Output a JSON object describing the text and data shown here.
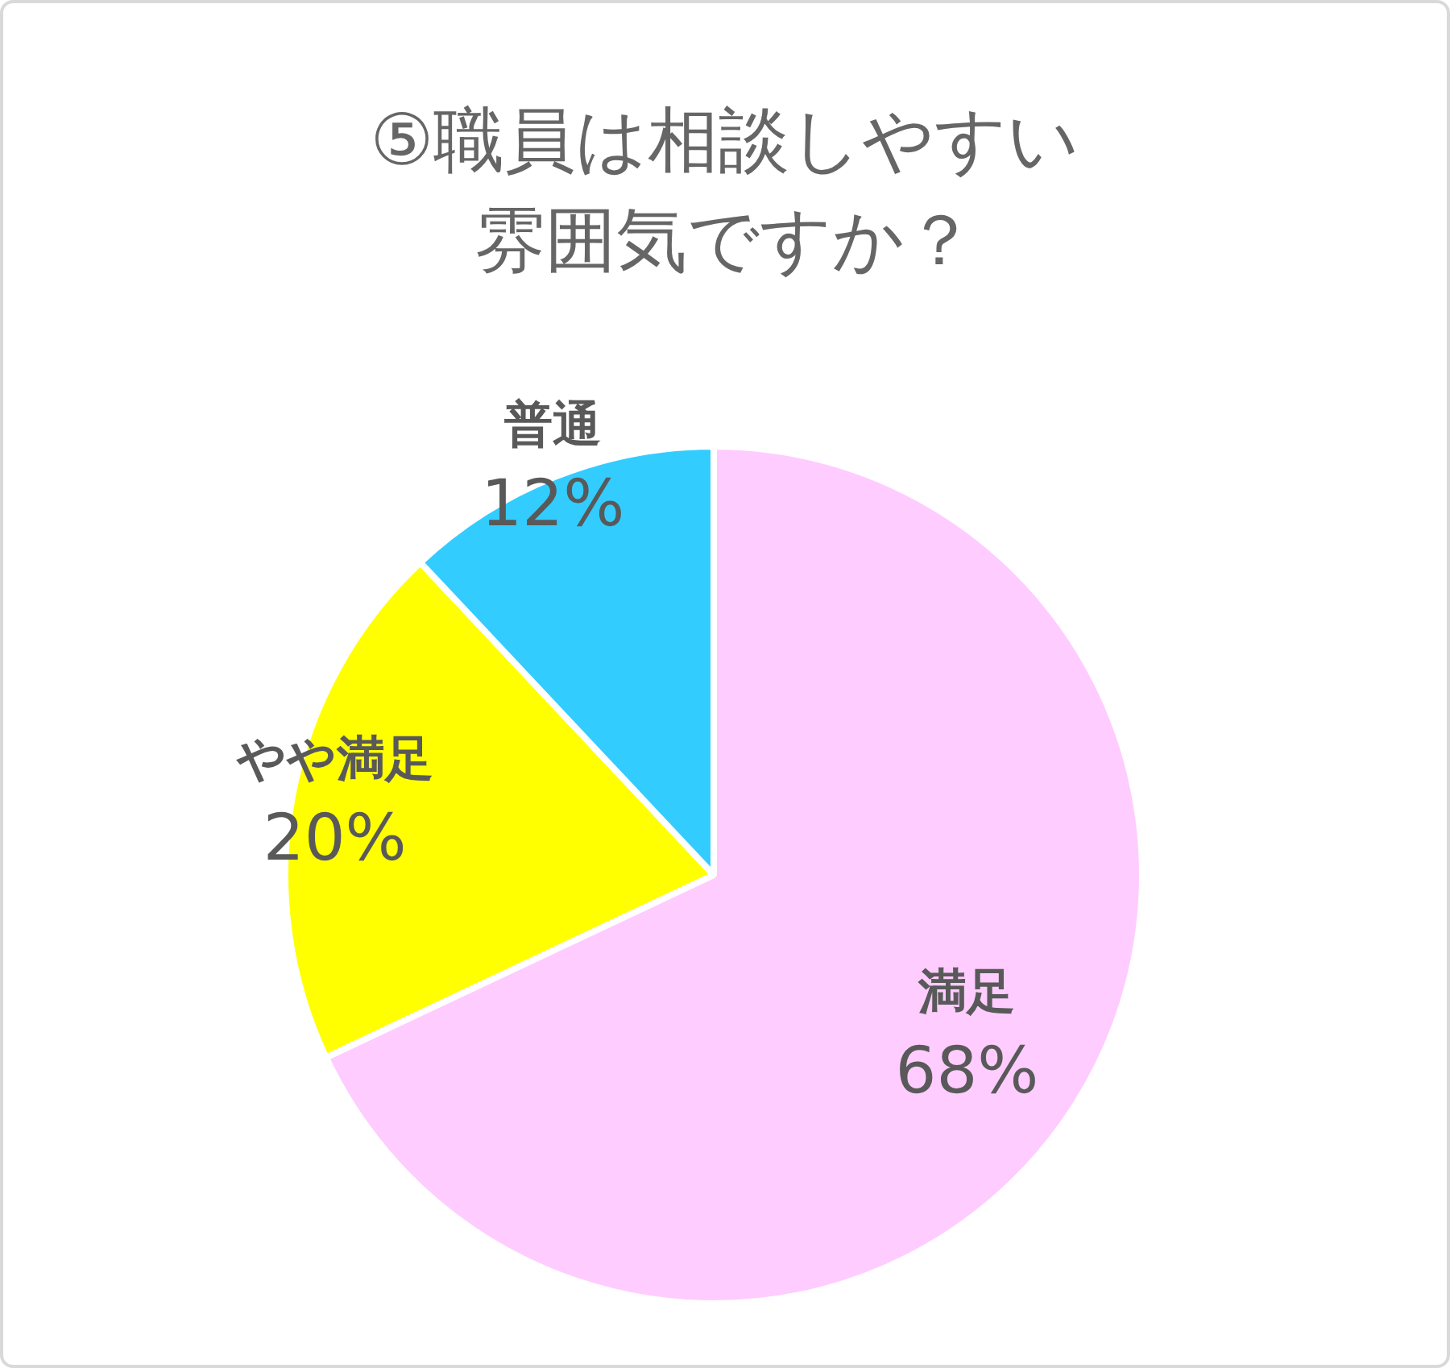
{
  "chart_data": {
    "type": "pie",
    "title": "⑤職員は相談しやすい雰囲気ですか？",
    "categories": [
      "満足",
      "やや満足",
      "普通"
    ],
    "values": [
      68,
      20,
      12
    ],
    "colors": [
      "#ffccff",
      "#ffff00",
      "#33ccff"
    ],
    "value_labels": [
      "68%",
      "20%",
      "12%"
    ]
  }
}
